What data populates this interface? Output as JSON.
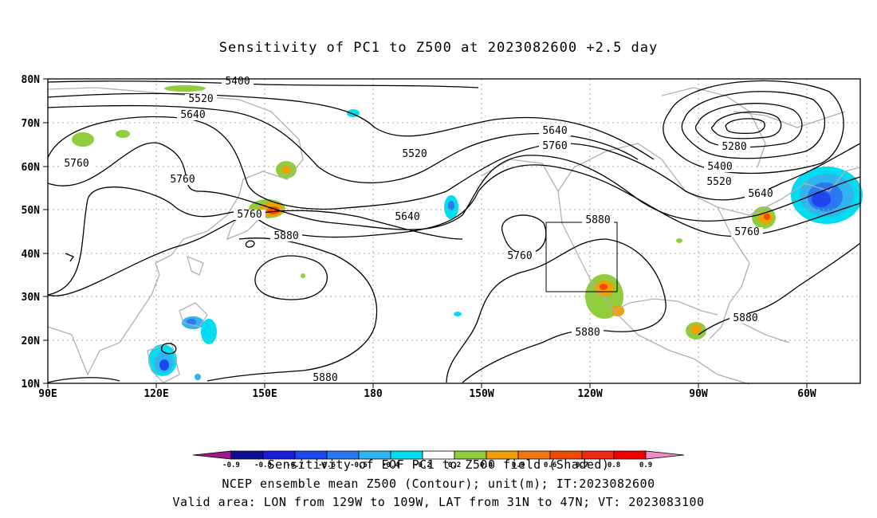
{
  "title": "Sensitivity of PC1 to Z500 at 2023082600 +2.5 day",
  "lat_ticks": [
    "80N",
    "70N",
    "60N",
    "50N",
    "40N",
    "30N",
    "20N",
    "10N"
  ],
  "lon_ticks": [
    "90E",
    "120E",
    "150E",
    "180",
    "150W",
    "120W",
    "90W",
    "60W"
  ],
  "contour_labels": [
    "5400",
    "5520",
    "5640",
    "5760",
    "5760",
    "5760",
    "5520",
    "5640",
    "5760",
    "5640",
    "5880",
    "5760",
    "5880",
    "5880",
    "5880",
    "5280",
    "5400",
    "5520",
    "5640",
    "5760",
    "5880"
  ],
  "colorbar": {
    "labels": [
      "-0.9",
      "-0.8",
      "-0.7",
      "-0.6",
      "-0.5",
      "-0.4",
      "-0.2",
      "0.2",
      "0.4",
      "0.5",
      "0.6",
      "0.7",
      "0.8",
      "0.9"
    ],
    "colors": [
      "#a0198c",
      "#0f0f91",
      "#1b1bdc",
      "#1e46f0",
      "#2a79f0",
      "#2fb4f0",
      "#00dcf0",
      "#ffffff",
      "#90cd3c",
      "#f0a000",
      "#f07814",
      "#f04b00",
      "#f02814",
      "#f00000",
      "#f08cc8"
    ],
    "title": "Sensitivity of EOF PC1 to Z500 field (Shaded)"
  },
  "footer_line1": "NCEP ensemble mean Z500 (Contour); unit(m); IT:2023082600",
  "footer_line2": "Valid area: LON from 129W to 109W, LAT from 31N to 47N; VT: 2023083100"
}
